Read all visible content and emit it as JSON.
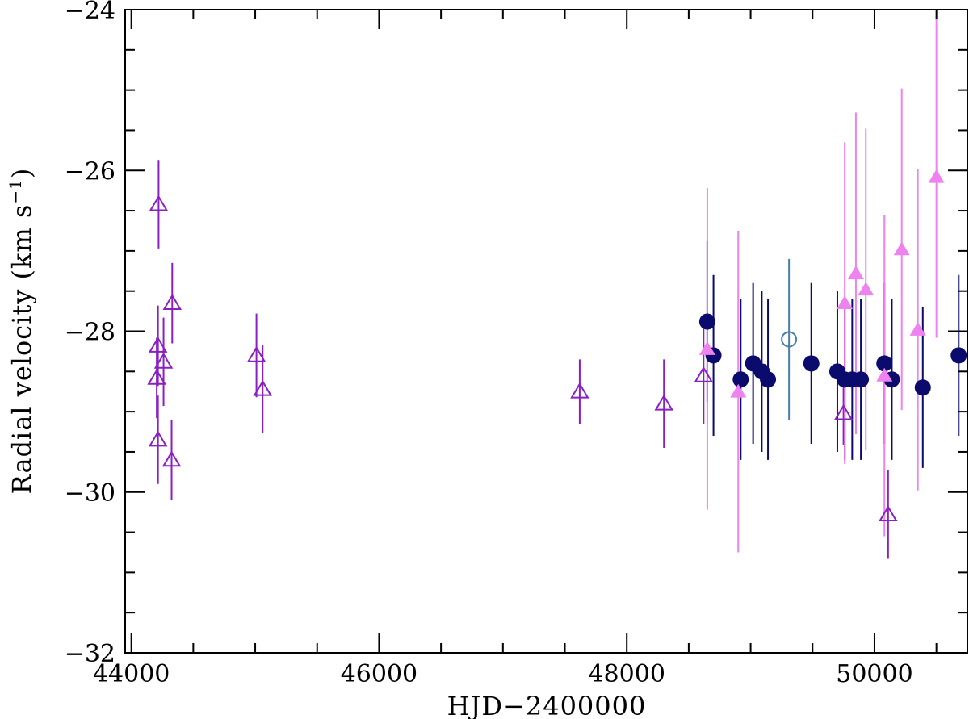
{
  "chart_data": {
    "type": "scatter",
    "title": "",
    "xlabel": "HJD−2400000",
    "ylabel_main": "Radial  velocity  (km s",
    "ylabel_sup": "−1",
    "ylabel_close": ")",
    "xlim": [
      43950,
      50750
    ],
    "ylim": [
      -32,
      -24
    ],
    "y_inverted": true,
    "grid": false,
    "legend": "none",
    "x_ticks": [
      44000,
      46000,
      48000,
      50000
    ],
    "x_tick_labels": [
      "44000",
      "46000",
      "48000",
      "50000"
    ],
    "y_ticks": [
      -24,
      -26,
      -28,
      -30,
      -32
    ],
    "y_tick_labels": [
      "−24",
      "−26",
      "−28",
      "−30",
      "−32"
    ],
    "series": [
      {
        "marker": "triangle-open",
        "color": "#8a1fc2",
        "points": [
          {
            "x": 44220,
            "y": -26.42,
            "err": 0.55
          },
          {
            "x": 44215,
            "y": -28.18,
            "err": 0.5
          },
          {
            "x": 44260,
            "y": -28.38,
            "err": 0.55
          },
          {
            "x": 44205,
            "y": -28.58,
            "err": 0.5
          },
          {
            "x": 44215,
            "y": -29.35,
            "err": 0.55
          },
          {
            "x": 44330,
            "y": -27.65,
            "err": 0.5
          },
          {
            "x": 44325,
            "y": -29.6,
            "err": 0.5
          },
          {
            "x": 45010,
            "y": -28.3,
            "err": 0.52
          },
          {
            "x": 45060,
            "y": -28.72,
            "err": 0.55
          },
          {
            "x": 47620,
            "y": -28.75,
            "err": 0.4
          },
          {
            "x": 48300,
            "y": -28.9,
            "err": 0.55
          },
          {
            "x": 48620,
            "y": -28.55,
            "err": 0.6
          },
          {
            "x": 49750,
            "y": -29.02,
            "err": 0.4
          },
          {
            "x": 50110,
            "y": -30.28,
            "err": 0.55
          }
        ]
      },
      {
        "marker": "circle-filled",
        "color": "#0b0b6e",
        "points": [
          {
            "x": 48650,
            "y": -27.88,
            "err": 1.0
          },
          {
            "x": 48700,
            "y": -28.3,
            "err": 1.0
          },
          {
            "x": 48920,
            "y": -28.6,
            "err": 1.0
          },
          {
            "x": 49020,
            "y": -28.4,
            "err": 1.0
          },
          {
            "x": 49090,
            "y": -28.5,
            "err": 1.0
          },
          {
            "x": 49140,
            "y": -28.6,
            "err": 1.0
          },
          {
            "x": 49490,
            "y": -28.4,
            "err": 1.0
          },
          {
            "x": 49700,
            "y": -28.5,
            "err": 1.0
          },
          {
            "x": 49760,
            "y": -28.6,
            "err": 1.0
          },
          {
            "x": 49820,
            "y": -28.6,
            "err": 1.0
          },
          {
            "x": 49890,
            "y": -28.6,
            "err": 1.0
          },
          {
            "x": 50080,
            "y": -28.4,
            "err": 1.0
          },
          {
            "x": 50140,
            "y": -28.6,
            "err": 1.0
          },
          {
            "x": 50390,
            "y": -28.7,
            "err": 1.0
          },
          {
            "x": 50680,
            "y": -28.3,
            "err": 1.0
          }
        ]
      },
      {
        "marker": "circle-open",
        "color": "#4a7fa8",
        "points": [
          {
            "x": 49310,
            "y": -28.1,
            "err": 1.0
          }
        ]
      },
      {
        "marker": "triangle-filled",
        "color": "#ee82ee",
        "points": [
          {
            "x": 48650,
            "y": -28.22,
            "err": 2.0
          },
          {
            "x": 48900,
            "y": -28.75,
            "err": 2.0
          },
          {
            "x": 49760,
            "y": -27.65,
            "err": 2.0
          },
          {
            "x": 49850,
            "y": -27.28,
            "err": 2.0
          },
          {
            "x": 49930,
            "y": -27.48,
            "err": 2.0
          },
          {
            "x": 50080,
            "y": -28.55,
            "err": 2.0
          },
          {
            "x": 50220,
            "y": -26.98,
            "err": 2.0
          },
          {
            "x": 50350,
            "y": -27.98,
            "err": 2.0
          },
          {
            "x": 50500,
            "y": -26.08,
            "err": 2.0
          }
        ]
      }
    ]
  }
}
